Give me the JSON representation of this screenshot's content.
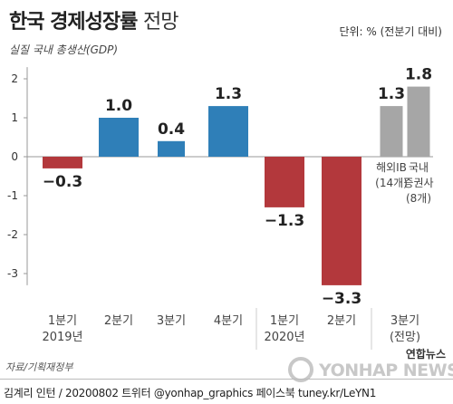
{
  "header": {
    "title_main": "한국 경제성장률",
    "title_sub": "전망",
    "unit": "단위: % (전분기 대비)",
    "subtitle": "실질 국내 총생산(GDP)"
  },
  "source": "자료/기획재정부",
  "footer": {
    "credit": "김계리 인턴 / 20200802  트위터 @yonhap_graphics  페이스북 tuney.kr/LeYN1",
    "watermark": "YONHAP NEWS",
    "logo": "연합뉴스"
  },
  "chart_data": {
    "type": "bar",
    "ylim": [
      -3.3,
      2.3
    ],
    "yticks": [
      2,
      1,
      0,
      -1,
      -2,
      -3
    ],
    "grid": false,
    "bars": [
      {
        "value": -0.3,
        "label": "-0.3",
        "color": "#b3383c"
      },
      {
        "value": 1.0,
        "label": "1.0",
        "color": "#2f7fb8"
      },
      {
        "value": 0.4,
        "label": "0.4",
        "color": "#2f7fb8"
      },
      {
        "value": 1.3,
        "label": "1.3",
        "color": "#2f7fb8"
      },
      {
        "value": -1.3,
        "label": "-1.3",
        "color": "#b3383c"
      },
      {
        "value": -3.3,
        "label": "-3.3",
        "color": "#b3383c"
      },
      {
        "value": 1.3,
        "label": "1.3",
        "color": "#a6a6a6",
        "sublabel": [
          "해외IB",
          "(14개)"
        ]
      },
      {
        "value": 1.8,
        "label": "1.8",
        "color": "#a6a6a6",
        "sublabel": [
          "국내",
          "증권사",
          "(8개)"
        ]
      }
    ],
    "categories": [
      {
        "lines": [
          "1분기",
          "2019년"
        ]
      },
      {
        "lines": [
          "2분기"
        ]
      },
      {
        "lines": [
          "3분기"
        ]
      },
      {
        "lines": [
          "4분기"
        ]
      },
      {
        "lines": [
          "1분기",
          "2020년"
        ]
      },
      {
        "lines": [
          "2분기"
        ]
      },
      {
        "lines": [
          "3분기",
          "(전망)"
        ]
      }
    ]
  }
}
